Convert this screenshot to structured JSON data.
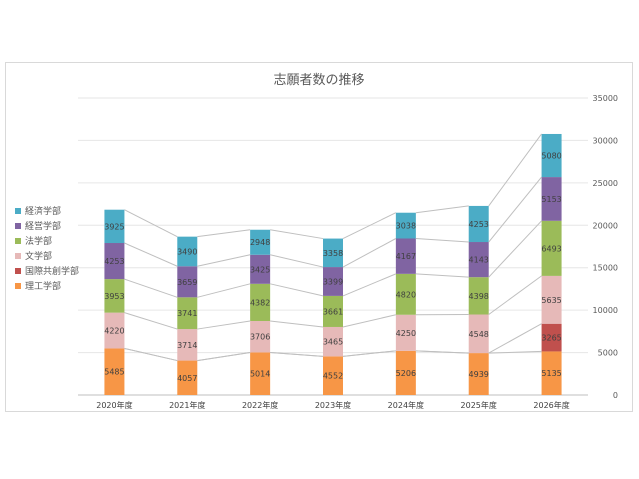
{
  "chart_data": {
    "type": "bar",
    "stacked": true,
    "title": "志願者数の推移",
    "categories": [
      "2020年度",
      "2021年度",
      "2022年度",
      "2023年度",
      "2024年度",
      "2025年度",
      "2026年度"
    ],
    "series": [
      {
        "name": "理工学部",
        "color": "#f79646",
        "values": [
          5485,
          4057,
          5014,
          4552,
          5206,
          4939,
          5135
        ]
      },
      {
        "name": "国際共創学部",
        "color": "#c0504d",
        "values": [
          0,
          0,
          0,
          0,
          0,
          0,
          3265
        ]
      },
      {
        "name": "文学部",
        "color": "#e6b9b8",
        "values": [
          4220,
          3714,
          3706,
          3465,
          4250,
          4548,
          5635
        ]
      },
      {
        "name": "法学部",
        "color": "#9bbb59",
        "values": [
          3953,
          3741,
          4382,
          3661,
          4820,
          4398,
          6493
        ]
      },
      {
        "name": "経営学部",
        "color": "#8064a2",
        "values": [
          4253,
          3659,
          3425,
          3399,
          4167,
          4143,
          5153
        ]
      },
      {
        "name": "経済学部",
        "color": "#4bacc6",
        "values": [
          3925,
          3490,
          2948,
          3358,
          3038,
          4253,
          5080
        ]
      }
    ],
    "legend_order": [
      "経済学部",
      "経営学部",
      "法学部",
      "文学部",
      "国際共創学部",
      "理工学部"
    ],
    "y_ticks": [
      "0",
      "5000",
      "10000",
      "15000",
      "20000",
      "25000",
      "30000",
      "35000"
    ],
    "ylim": [
      0,
      35000
    ],
    "y_axis_position": "right",
    "legend_position": "left",
    "gridlines": true,
    "connector_lines": true
  }
}
